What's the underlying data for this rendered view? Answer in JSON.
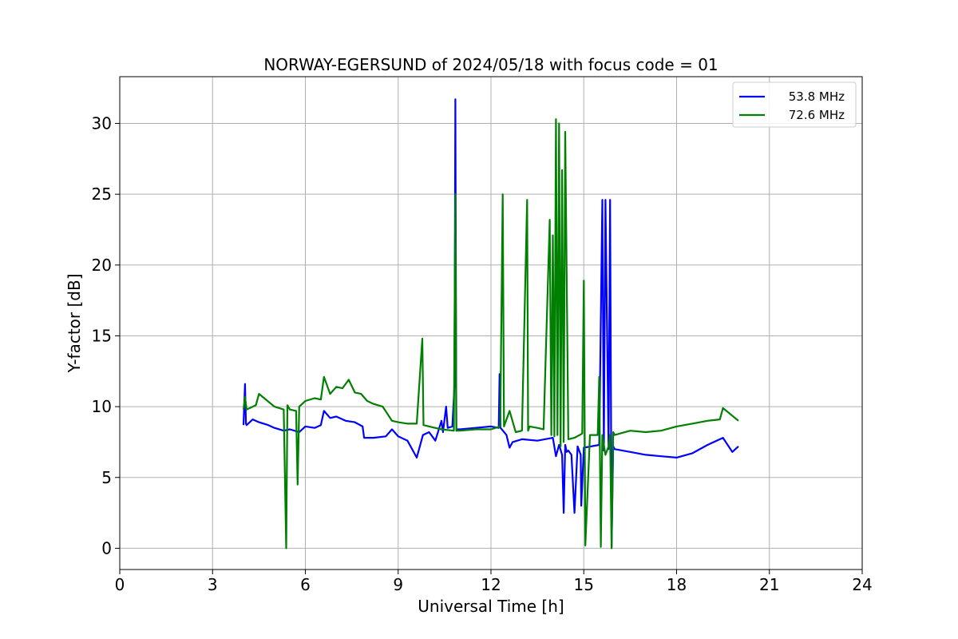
{
  "chart_data": {
    "type": "line",
    "title": "NORWAY-EGERSUND of 2024/05/18 with focus code = 01",
    "xlabel": "Universal Time [h]",
    "ylabel": "Y-factor [dB]",
    "xlim": [
      0,
      24
    ],
    "ylim": [
      -1.5,
      33.3
    ],
    "xticks": [
      0,
      3,
      6,
      9,
      12,
      15,
      18,
      21,
      24
    ],
    "yticks": [
      0,
      5,
      10,
      15,
      20,
      25,
      30
    ],
    "grid": true,
    "legend_position": "top-right",
    "series": [
      {
        "name": "53.8 MHz",
        "color": "#0000ff",
        "x": [
          4.0,
          4.05,
          4.08,
          4.1,
          4.3,
          4.5,
          4.8,
          5.0,
          5.3,
          5.5,
          5.8,
          6.0,
          6.3,
          6.5,
          6.6,
          6.8,
          7.0,
          7.3,
          7.6,
          7.85,
          7.9,
          8.2,
          8.6,
          8.8,
          9.0,
          9.3,
          9.6,
          9.8,
          10.0,
          10.2,
          10.4,
          10.45,
          10.55,
          10.6,
          10.75,
          10.82,
          10.85,
          10.88,
          10.9,
          11.0,
          11.5,
          12.0,
          12.25,
          12.28,
          12.31,
          12.5,
          12.6,
          12.7,
          13.0,
          13.5,
          14.0,
          14.1,
          14.2,
          14.3,
          14.35,
          14.4,
          14.45,
          14.5,
          14.6,
          14.7,
          14.8,
          14.9,
          14.92,
          15.0,
          15.5,
          15.6,
          15.65,
          15.7,
          15.8,
          15.85,
          15.9,
          15.95,
          16.0,
          16.5,
          17.0,
          17.5,
          18.0,
          18.5,
          19.0,
          19.5,
          19.8,
          20.0
        ],
        "y": [
          8.7,
          11.6,
          8.8,
          8.7,
          9.1,
          8.9,
          8.7,
          8.5,
          8.3,
          8.4,
          8.2,
          8.6,
          8.5,
          8.7,
          9.7,
          9.2,
          9.3,
          9.0,
          8.9,
          8.6,
          7.8,
          7.8,
          7.9,
          8.4,
          7.9,
          7.6,
          6.4,
          8.0,
          8.2,
          7.6,
          9.0,
          8.2,
          10.0,
          8.5,
          8.6,
          11.5,
          31.7,
          8.3,
          8.4,
          8.4,
          8.5,
          8.6,
          8.5,
          12.3,
          8.5,
          8.0,
          7.1,
          7.5,
          7.7,
          7.6,
          7.8,
          6.5,
          7.3,
          6.6,
          2.5,
          7.3,
          6.8,
          6.9,
          6.6,
          2.5,
          7.2,
          6.6,
          3.0,
          7.1,
          7.3,
          24.6,
          6.9,
          24.6,
          7.0,
          24.6,
          0.1,
          7.2,
          7.0,
          6.8,
          6.6,
          6.5,
          6.4,
          6.7,
          7.3,
          7.8,
          6.8,
          7.2
        ]
      },
      {
        "name": "72.6 MHz",
        "color": "#008000",
        "x": [
          4.0,
          4.05,
          4.1,
          4.4,
          4.5,
          5.0,
          5.3,
          5.38,
          5.42,
          5.5,
          5.7,
          5.75,
          5.8,
          6.0,
          6.3,
          6.5,
          6.6,
          6.8,
          7.0,
          7.2,
          7.4,
          7.6,
          7.8,
          8.0,
          8.2,
          8.5,
          8.8,
          9.0,
          9.3,
          9.6,
          9.78,
          9.82,
          10.0,
          10.4,
          10.8,
          10.85,
          10.88,
          11.0,
          11.5,
          12.0,
          12.3,
          12.38,
          12.42,
          12.6,
          12.8,
          13.0,
          13.17,
          13.2,
          13.25,
          13.5,
          13.7,
          13.9,
          13.95,
          14.0,
          14.05,
          14.1,
          14.15,
          14.2,
          14.25,
          14.3,
          14.35,
          14.4,
          14.5,
          14.7,
          14.95,
          15.0,
          15.05,
          15.2,
          15.45,
          15.5,
          15.55,
          15.6,
          15.7,
          15.8,
          15.85,
          15.9,
          15.95,
          16.0,
          16.5,
          17.0,
          17.5,
          18.0,
          18.5,
          19.0,
          19.4,
          19.5,
          20.0
        ],
        "y": [
          9.8,
          10.7,
          9.8,
          10.1,
          10.9,
          10.0,
          9.8,
          0.0,
          10.1,
          9.8,
          9.7,
          4.5,
          10.0,
          10.4,
          10.6,
          10.5,
          12.1,
          10.9,
          11.4,
          11.3,
          11.9,
          11.0,
          10.9,
          10.4,
          10.2,
          10.0,
          9.0,
          8.9,
          8.8,
          8.8,
          14.8,
          8.7,
          8.6,
          8.4,
          8.3,
          25.0,
          8.3,
          8.3,
          8.4,
          8.4,
          8.6,
          25.0,
          8.6,
          9.7,
          8.2,
          8.3,
          24.6,
          8.3,
          8.6,
          8.5,
          8.4,
          23.2,
          8.0,
          22.1,
          7.9,
          30.3,
          8.0,
          30.0,
          7.2,
          26.7,
          7.5,
          29.4,
          7.7,
          7.8,
          8.1,
          18.9,
          0.2,
          8.0,
          8.0,
          12.1,
          0.1,
          8.0,
          6.6,
          7.2,
          8.0,
          0.0,
          8.2,
          8.0,
          8.3,
          8.2,
          8.3,
          8.6,
          8.8,
          9.0,
          9.1,
          9.9,
          9.0
        ]
      }
    ]
  }
}
